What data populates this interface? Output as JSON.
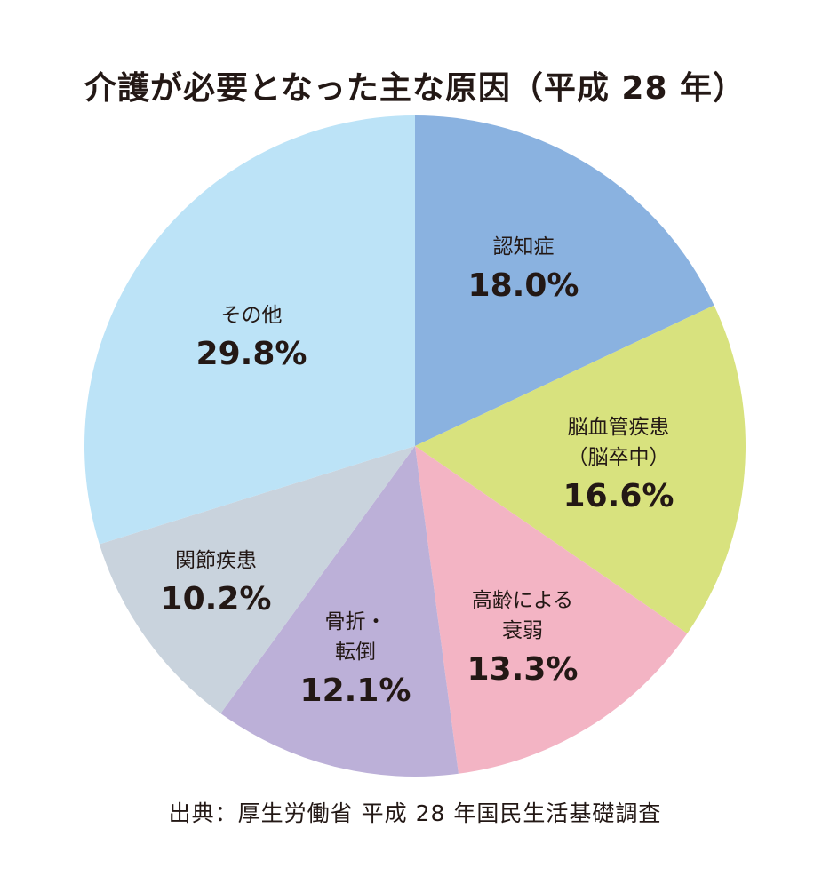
{
  "chart_data": {
    "type": "pie",
    "title": "介護が必要となった主な原因（平成 28 年）",
    "start": "12 o'clock",
    "direction": "clockwise",
    "slices": [
      {
        "label_lines": [
          "認知症"
        ],
        "value": 18.0,
        "value_label": "18.0%",
        "color": "#8ab2e0"
      },
      {
        "label_lines": [
          "脳血管疾患",
          "（脳卒中）"
        ],
        "value": 16.6,
        "value_label": "16.6%",
        "color": "#d8e27e"
      },
      {
        "label_lines": [
          "高齢による",
          "衰弱"
        ],
        "value": 13.3,
        "value_label": "13.3%",
        "color": "#f3b4c4"
      },
      {
        "label_lines": [
          "骨折・",
          "転倒"
        ],
        "value": 12.1,
        "value_label": "12.1%",
        "color": "#bcb0d8"
      },
      {
        "label_lines": [
          "関節疾患"
        ],
        "value": 10.2,
        "value_label": "10.2%",
        "color": "#c9d3dd"
      },
      {
        "label_lines": [
          "その他"
        ],
        "value": 29.8,
        "value_label": "29.8%",
        "color": "#bce3f7"
      }
    ]
  },
  "source_note": "出典：厚生労働省 平成 28 年国民生活基礎調査"
}
